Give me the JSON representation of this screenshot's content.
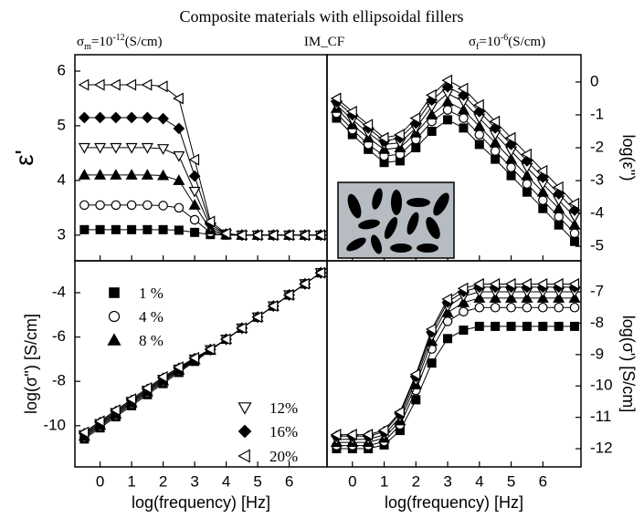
{
  "figure": {
    "title": "Composite materials with ellipsoidal fillers",
    "left_note": [
      "σ",
      "m",
      "=10",
      "-12",
      "(S/cm)"
    ],
    "center_note": "IM_CF",
    "right_note": [
      "σ",
      "f",
      "=10",
      "-6",
      "(S/cm)"
    ]
  },
  "chart_data": [
    {
      "type": "line",
      "ylabel": "ε'",
      "yaxis_side": "left",
      "x": [
        -0.5,
        0,
        0.5,
        1,
        1.5,
        2,
        2.5,
        3,
        3.5,
        4,
        4.5,
        5,
        5.5,
        6,
        6.5,
        7
      ],
      "xlim": [
        -0.8,
        7.2
      ],
      "xticks": [
        0,
        1,
        2,
        3,
        4,
        5,
        6
      ],
      "ylim": [
        2.53,
        6.3
      ],
      "yticks": [
        3,
        4,
        5,
        6
      ],
      "series": [
        {
          "marker": "square",
          "filled": true,
          "color": "#000000",
          "values": [
            3.1,
            3.1,
            3.1,
            3.1,
            3.1,
            3.1,
            3.09,
            3.05,
            3.01,
            3.0,
            3.0,
            3.0,
            3.0,
            3.0,
            3.0,
            3.0
          ]
        },
        {
          "marker": "circle",
          "filled": false,
          "color": "#000000",
          "values": [
            3.55,
            3.55,
            3.55,
            3.55,
            3.55,
            3.54,
            3.5,
            3.28,
            3.05,
            3.01,
            3.0,
            3.0,
            3.0,
            3.0,
            3.0,
            3.0
          ]
        },
        {
          "marker": "triangle-up",
          "filled": true,
          "color": "#000000",
          "values": [
            4.1,
            4.1,
            4.1,
            4.1,
            4.1,
            4.09,
            4.0,
            3.55,
            3.1,
            3.01,
            3.0,
            3.0,
            3.0,
            3.0,
            3.0,
            3.0
          ]
        },
        {
          "marker": "triangle-down",
          "filled": false,
          "color": "#000000",
          "values": [
            4.6,
            4.6,
            4.6,
            4.6,
            4.6,
            4.58,
            4.45,
            3.8,
            3.15,
            3.02,
            3.0,
            3.0,
            3.0,
            3.0,
            3.0,
            3.0
          ]
        },
        {
          "marker": "diamond",
          "filled": true,
          "color": "#000000",
          "values": [
            5.15,
            5.15,
            5.15,
            5.15,
            5.15,
            5.13,
            4.95,
            4.08,
            3.2,
            3.02,
            3.0,
            3.0,
            3.0,
            3.0,
            3.0,
            3.0
          ]
        },
        {
          "marker": "triangle-left",
          "filled": false,
          "color": "#000000",
          "values": [
            5.75,
            5.75,
            5.75,
            5.75,
            5.75,
            5.72,
            5.5,
            4.38,
            3.25,
            3.03,
            3.0,
            3.0,
            3.0,
            3.0,
            3.0,
            3.0
          ]
        }
      ]
    },
    {
      "type": "line",
      "ylabel": "log(ε'')",
      "yaxis_side": "right",
      "x": [
        -0.5,
        0,
        0.5,
        1,
        1.5,
        2,
        2.5,
        3,
        3.5,
        4,
        4.5,
        5,
        5.5,
        6,
        6.5,
        7
      ],
      "xlim": [
        -0.8,
        7.2
      ],
      "xticks": [
        0,
        1,
        2,
        3,
        4,
        5,
        6
      ],
      "ylim": [
        -5.44,
        0.83
      ],
      "yticks": [
        0,
        -1,
        -2,
        -3,
        -4,
        -5
      ],
      "series": [
        {
          "marker": "square",
          "filled": true,
          "color": "#000000",
          "values": [
            -1.1,
            -1.6,
            -2.05,
            -2.45,
            -2.4,
            -2.0,
            -1.5,
            -1.15,
            -1.4,
            -1.9,
            -2.35,
            -2.85,
            -3.35,
            -3.85,
            -4.35,
            -4.85
          ]
        },
        {
          "marker": "circle",
          "filled": false,
          "color": "#000000",
          "values": [
            -0.95,
            -1.45,
            -1.9,
            -2.25,
            -2.2,
            -1.75,
            -1.2,
            -0.85,
            -1.1,
            -1.6,
            -2.1,
            -2.6,
            -3.1,
            -3.6,
            -4.1,
            -4.6
          ]
        },
        {
          "marker": "triangle-up",
          "filled": true,
          "color": "#000000",
          "values": [
            -0.8,
            -1.3,
            -1.7,
            -2.05,
            -2.0,
            -1.55,
            -1.0,
            -0.6,
            -0.85,
            -1.35,
            -1.85,
            -2.35,
            -2.85,
            -3.35,
            -3.85,
            -4.35
          ]
        },
        {
          "marker": "triangle-down",
          "filled": false,
          "color": "#000000",
          "values": [
            -0.7,
            -1.15,
            -1.55,
            -1.9,
            -1.85,
            -1.4,
            -0.75,
            -0.35,
            -0.6,
            -1.1,
            -1.6,
            -2.1,
            -2.6,
            -3.1,
            -3.6,
            -4.1
          ]
        },
        {
          "marker": "diamond",
          "filled": true,
          "color": "#000000",
          "values": [
            -0.6,
            -1.0,
            -1.4,
            -1.8,
            -1.7,
            -1.25,
            -0.55,
            -0.15,
            -0.4,
            -0.9,
            -1.4,
            -1.9,
            -2.4,
            -2.9,
            -3.4,
            -3.9
          ]
        },
        {
          "marker": "triangle-left",
          "filled": false,
          "color": "#000000",
          "values": [
            -0.5,
            -0.9,
            -1.3,
            -1.7,
            -1.6,
            -1.1,
            -0.4,
            0.05,
            -0.2,
            -0.7,
            -1.2,
            -1.7,
            -2.2,
            -2.7,
            -3.2,
            -3.7
          ]
        }
      ]
    },
    {
      "type": "line",
      "ylabel": "log(σ'') [S/cm]",
      "xlabel": "log(frequency) [Hz]",
      "yaxis_side": "left",
      "x": [
        -0.5,
        0,
        0.5,
        1,
        1.5,
        2,
        2.5,
        3,
        3.5,
        4,
        4.5,
        5,
        5.5,
        6,
        6.5,
        7
      ],
      "xlim": [
        -0.8,
        7.2
      ],
      "xticks": [
        0,
        1,
        2,
        3,
        4,
        5,
        6
      ],
      "ylim": [
        -11.86,
        -2.56
      ],
      "yticks": [
        -4,
        -6,
        -8,
        -10
      ],
      "series": [
        {
          "name": "1 %",
          "marker": "square",
          "filled": true,
          "color": "#000000",
          "values": [
            -10.6,
            -10.1,
            -9.6,
            -9.1,
            -8.6,
            -8.1,
            -7.6,
            -7.1,
            -6.6,
            -6.1,
            -5.6,
            -5.1,
            -4.6,
            -4.1,
            -3.6,
            -3.1
          ]
        },
        {
          "name": "4 %",
          "marker": "circle",
          "filled": false,
          "color": "#000000",
          "values": [
            -10.53,
            -10.03,
            -9.53,
            -9.03,
            -8.53,
            -8.03,
            -7.54,
            -7.07,
            -6.59,
            -6.1,
            -5.6,
            -5.1,
            -4.6,
            -4.1,
            -3.6,
            -3.1
          ]
        },
        {
          "name": "8 %",
          "marker": "triangle-up",
          "filled": true,
          "color": "#000000",
          "values": [
            -10.47,
            -9.97,
            -9.47,
            -8.97,
            -8.47,
            -7.97,
            -7.49,
            -7.03,
            -6.58,
            -6.1,
            -5.6,
            -5.1,
            -4.6,
            -4.1,
            -3.6,
            -3.1
          ]
        },
        {
          "name": "12%",
          "marker": "triangle-down",
          "filled": false,
          "color": "#000000",
          "values": [
            -10.41,
            -9.91,
            -9.41,
            -8.91,
            -8.41,
            -7.91,
            -7.45,
            -7.0,
            -6.57,
            -6.1,
            -5.6,
            -5.1,
            -4.6,
            -4.1,
            -3.6,
            -3.1
          ]
        },
        {
          "name": "16%",
          "marker": "diamond",
          "filled": true,
          "color": "#000000",
          "values": [
            -10.36,
            -9.86,
            -9.36,
            -8.86,
            -8.36,
            -7.86,
            -7.41,
            -6.97,
            -6.56,
            -6.1,
            -5.6,
            -5.1,
            -4.6,
            -4.1,
            -3.6,
            -3.1
          ]
        },
        {
          "name": "20%",
          "marker": "triangle-left",
          "filled": false,
          "color": "#000000",
          "values": [
            -10.3,
            -9.8,
            -9.3,
            -8.8,
            -8.3,
            -7.8,
            -7.36,
            -6.94,
            -6.55,
            -6.1,
            -5.6,
            -5.1,
            -4.6,
            -4.1,
            -3.6,
            -3.1
          ]
        }
      ]
    },
    {
      "type": "line",
      "ylabel": "log(σ') [S/cm]",
      "xlabel": "log(frequency) [Hz]",
      "yaxis_side": "right",
      "x": [
        -0.5,
        0,
        0.5,
        1,
        1.5,
        2,
        2.5,
        3,
        3.5,
        4,
        4.5,
        5,
        5.5,
        6,
        6.5,
        7
      ],
      "xlim": [
        -0.8,
        7.2
      ],
      "xticks": [
        0,
        1,
        2,
        3,
        4,
        5,
        6
      ],
      "ylim": [
        -12.58,
        -6.01
      ],
      "yticks": [
        -7,
        -8,
        -9,
        -10,
        -11,
        -12
      ],
      "series": [
        {
          "marker": "square",
          "filled": true,
          "color": "#000000",
          "values": [
            -12,
            -12,
            -12,
            -11.88,
            -11.42,
            -10.44,
            -9.27,
            -8.49,
            -8.22,
            -8.1,
            -8.1,
            -8.1,
            -8.1,
            -8.1,
            -8.1,
            -8.1
          ]
        },
        {
          "marker": "circle",
          "filled": false,
          "color": "#000000",
          "values": [
            -11.9,
            -11.9,
            -11.9,
            -11.77,
            -11.24,
            -10.14,
            -8.82,
            -7.94,
            -7.63,
            -7.5,
            -7.5,
            -7.5,
            -7.5,
            -7.5,
            -7.5,
            -7.5
          ]
        },
        {
          "marker": "triangle-up",
          "filled": true,
          "color": "#000000",
          "values": [
            -11.8,
            -11.8,
            -11.8,
            -11.66,
            -11.11,
            -9.96,
            -8.58,
            -7.66,
            -7.34,
            -7.2,
            -7.2,
            -7.2,
            -7.2,
            -7.2,
            -7.2,
            -7.2
          ]
        },
        {
          "marker": "triangle-down",
          "filled": false,
          "color": "#000000",
          "values": [
            -11.7,
            -11.7,
            -11.7,
            -11.56,
            -10.99,
            -9.82,
            -8.41,
            -7.47,
            -7.14,
            -7.0,
            -7.0,
            -7.0,
            -7.0,
            -7.0,
            -7.0,
            -7.0
          ]
        },
        {
          "marker": "diamond",
          "filled": true,
          "color": "#000000",
          "values": [
            -11.6,
            -11.6,
            -11.6,
            -11.46,
            -10.89,
            -9.7,
            -8.28,
            -7.33,
            -6.99,
            -6.85,
            -6.85,
            -6.85,
            -6.85,
            -6.85,
            -6.85,
            -6.85
          ]
        },
        {
          "marker": "triangle-left",
          "filled": false,
          "color": "#000000",
          "values": [
            -11.55,
            -11.55,
            -11.55,
            -11.41,
            -10.83,
            -9.63,
            -8.19,
            -7.23,
            -6.89,
            -6.75,
            -6.75,
            -6.75,
            -6.75,
            -6.75,
            -6.75,
            -6.75
          ]
        }
      ]
    }
  ]
}
